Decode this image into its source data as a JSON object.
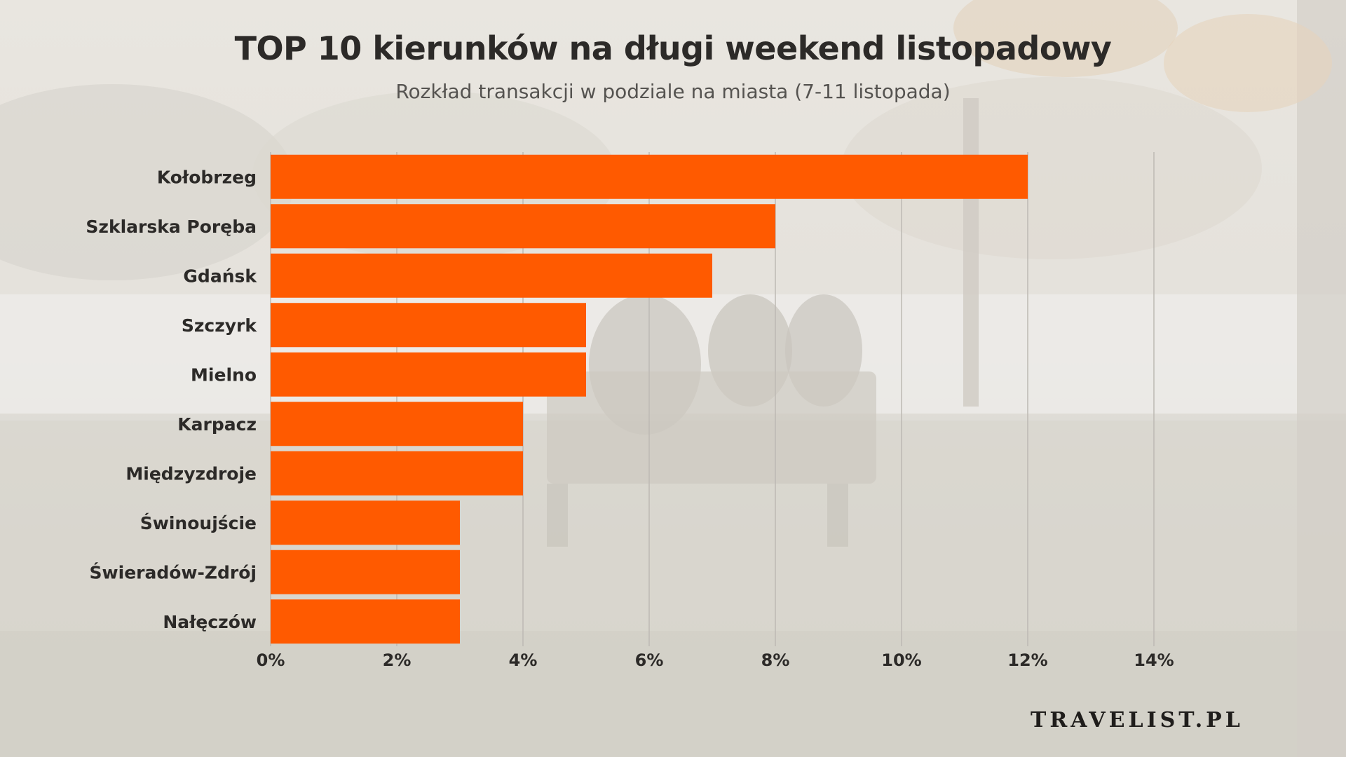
{
  "header": {
    "title": "TOP 10 kierunków na długi weekend listopadowy",
    "subtitle": "Rozkład transakcji w podziale na miasta (7-11 listopada)"
  },
  "brand": {
    "logo_text": "TRAVELIST.PL"
  },
  "colors": {
    "bar": "#ff5a00",
    "gridline": "#bdb9b4",
    "label": "#2c2a28"
  },
  "chart_data": {
    "type": "bar",
    "orientation": "horizontal",
    "title": "TOP 10 kierunków na długi weekend listopadowy",
    "subtitle": "Rozkład transakcji w podziale na miasta (7-11 listopada)",
    "categories": [
      "Kołobrzeg",
      "Szklarska Poręba",
      "Gdańsk",
      "Szczyrk",
      "Mielno",
      "Karpacz",
      "Międzyzdroje",
      "Świnoujście",
      "Świeradów-Zdrój",
      "Nałęczów"
    ],
    "values": [
      12,
      8,
      7,
      5,
      5,
      4,
      4,
      3,
      3,
      3
    ],
    "xlim": [
      0,
      14
    ],
    "xticks": [
      "0%",
      "2%",
      "4%",
      "6%",
      "8%",
      "10%",
      "12%",
      "14%"
    ],
    "grid": true,
    "legend": "none"
  }
}
